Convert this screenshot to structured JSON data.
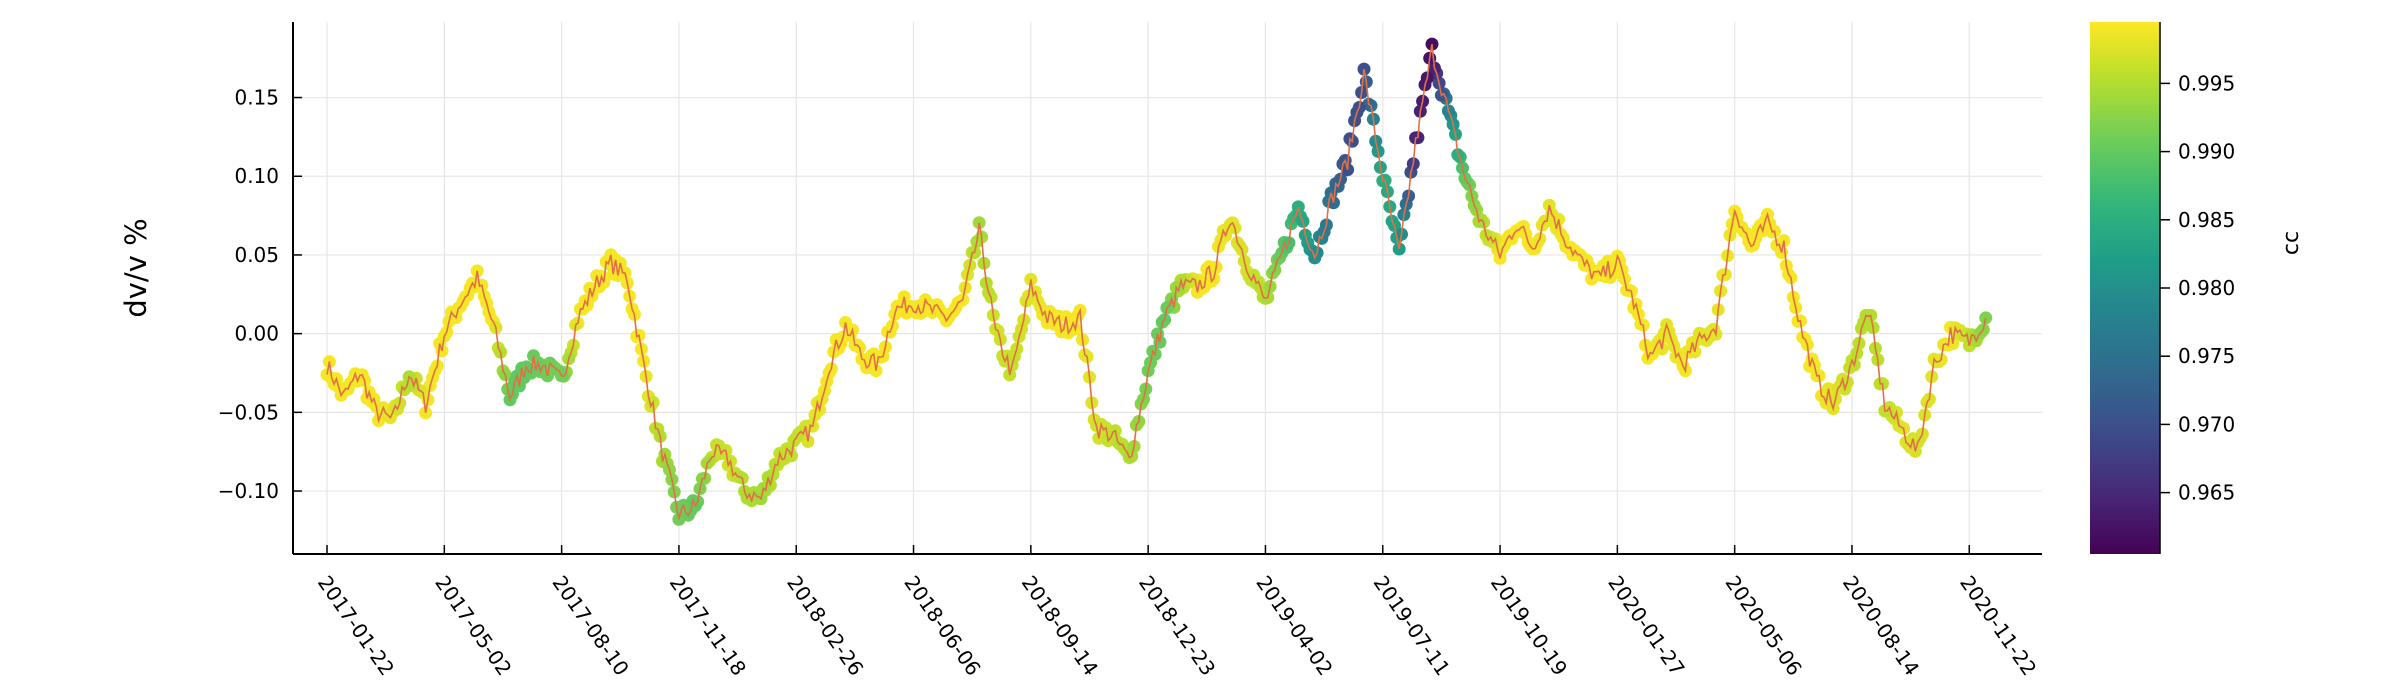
{
  "chart_data": {
    "type": "scatter",
    "title": "",
    "xlabel": "",
    "ylabel": "dv/v %",
    "xlim": [
      "2016-12-24",
      "2021-01-23"
    ],
    "ylim": [
      -0.14,
      0.198
    ],
    "x_ticks": [
      "2017-01-22",
      "2017-05-02",
      "2017-08-10",
      "2017-11-18",
      "2018-02-26",
      "2018-06-06",
      "2018-09-14",
      "2018-12-23",
      "2019-04-02",
      "2019-07-11",
      "2019-10-19",
      "2020-01-27",
      "2020-05-06",
      "2020-08-14",
      "2020-11-22"
    ],
    "y_ticks": [
      "-0.10",
      "-0.05",
      "0.00",
      "0.05",
      "0.10",
      "0.15"
    ],
    "grid": true,
    "line_color": "#e26f46",
    "colorbar": {
      "label": "cc",
      "range": [
        0.9605,
        0.9995
      ],
      "ticks": [
        "0.965",
        "0.970",
        "0.975",
        "0.980",
        "0.985",
        "0.990",
        "0.995"
      ],
      "colormap": "viridis"
    },
    "series": [
      {
        "x": [
          "2017-01-22",
          "2017-02-05",
          "2017-02-19",
          "2017-03-05",
          "2017-03-19",
          "2017-04-02",
          "2017-04-16",
          "2017-05-02",
          "2017-05-16",
          "2017-05-30",
          "2017-06-13",
          "2017-06-27",
          "2017-07-11",
          "2017-07-25",
          "2017-08-10",
          "2017-08-24",
          "2017-09-07",
          "2017-09-21",
          "2017-10-05",
          "2017-10-19",
          "2017-11-02",
          "2017-11-18",
          "2017-12-02",
          "2017-12-16",
          "2017-12-30",
          "2018-01-13",
          "2018-01-27",
          "2018-02-10",
          "2018-02-26",
          "2018-03-12",
          "2018-03-26",
          "2018-04-09",
          "2018-04-23",
          "2018-05-07",
          "2018-05-21",
          "2018-06-06",
          "2018-06-20",
          "2018-07-04",
          "2018-07-18",
          "2018-08-01",
          "2018-08-15",
          "2018-08-29",
          "2018-09-14",
          "2018-09-28",
          "2018-10-12",
          "2018-10-26",
          "2018-11-09",
          "2018-11-23",
          "2018-12-07",
          "2018-12-23",
          "2019-01-06",
          "2019-01-20",
          "2019-02-03",
          "2019-02-17",
          "2019-03-03",
          "2019-03-17",
          "2019-04-02",
          "2019-04-16",
          "2019-04-30",
          "2019-05-14",
          "2019-05-28",
          "2019-06-11",
          "2019-06-25",
          "2019-07-11",
          "2019-07-25",
          "2019-08-08",
          "2019-08-22",
          "2019-09-05",
          "2019-09-19",
          "2019-10-03",
          "2019-10-19",
          "2019-11-02",
          "2019-11-16",
          "2019-11-30",
          "2019-12-14",
          "2019-12-28",
          "2020-01-11",
          "2020-01-27",
          "2020-02-10",
          "2020-02-24",
          "2020-03-09",
          "2020-03-23",
          "2020-04-06",
          "2020-04-20",
          "2020-05-06",
          "2020-05-20",
          "2020-06-03",
          "2020-06-17",
          "2020-07-01",
          "2020-07-15",
          "2020-07-29",
          "2020-08-14",
          "2020-08-28",
          "2020-09-11",
          "2020-09-25",
          "2020-10-09",
          "2020-10-23",
          "2020-11-06",
          "2020-11-22",
          "2020-12-06"
        ],
        "y": [
          -0.02,
          -0.04,
          -0.025,
          -0.05,
          -0.055,
          -0.025,
          -0.045,
          0.0,
          0.02,
          0.035,
          0.005,
          -0.04,
          -0.02,
          -0.02,
          -0.03,
          0.01,
          0.03,
          0.045,
          0.035,
          -0.02,
          -0.07,
          -0.115,
          -0.11,
          -0.075,
          -0.08,
          -0.1,
          -0.105,
          -0.08,
          -0.07,
          -0.06,
          -0.02,
          0.005,
          -0.015,
          -0.02,
          0.015,
          0.02,
          0.015,
          0.01,
          0.02,
          0.065,
          0.0,
          -0.025,
          0.03,
          0.01,
          0.005,
          0.01,
          -0.06,
          -0.065,
          -0.08,
          -0.025,
          0.01,
          0.03,
          0.03,
          0.04,
          0.075,
          0.045,
          0.02,
          0.05,
          0.08,
          0.05,
          0.085,
          0.11,
          0.165,
          0.1,
          0.05,
          0.12,
          0.18,
          0.14,
          0.1,
          0.07,
          0.05,
          0.07,
          0.055,
          0.08,
          0.06,
          0.045,
          0.035,
          0.045,
          0.02,
          -0.015,
          0.0,
          -0.02,
          -0.005,
          0.005,
          0.08,
          0.055,
          0.07,
          0.055,
          0.005,
          -0.03,
          -0.045,
          -0.02,
          0.015,
          -0.045,
          -0.06,
          -0.075,
          -0.02,
          0.0,
          -0.005,
          0.01
        ],
        "cc": [
          0.999,
          0.999,
          0.999,
          0.999,
          0.998,
          0.995,
          0.999,
          0.999,
          0.999,
          0.999,
          0.999,
          0.99,
          0.99,
          0.991,
          0.991,
          0.999,
          0.999,
          0.999,
          0.999,
          0.999,
          0.995,
          0.991,
          0.99,
          0.996,
          0.997,
          0.995,
          0.994,
          0.996,
          0.996,
          0.998,
          0.999,
          0.999,
          0.999,
          0.999,
          0.999,
          0.999,
          0.999,
          0.999,
          0.999,
          0.994,
          0.997,
          0.996,
          0.998,
          0.999,
          0.999,
          0.999,
          0.997,
          0.996,
          0.995,
          0.991,
          0.99,
          0.995,
          0.999,
          0.999,
          0.998,
          0.997,
          0.995,
          0.99,
          0.985,
          0.98,
          0.975,
          0.97,
          0.97,
          0.985,
          0.982,
          0.965,
          0.962,
          0.978,
          0.99,
          0.995,
          0.999,
          0.999,
          0.999,
          0.998,
          0.999,
          0.999,
          0.999,
          0.999,
          0.999,
          0.999,
          0.998,
          0.999,
          0.998,
          0.998,
          0.999,
          0.999,
          0.999,
          0.999,
          0.999,
          0.999,
          0.998,
          0.996,
          0.995,
          0.996,
          0.998,
          0.997,
          0.998,
          0.999,
          0.996,
          0.992
        ]
      }
    ]
  }
}
